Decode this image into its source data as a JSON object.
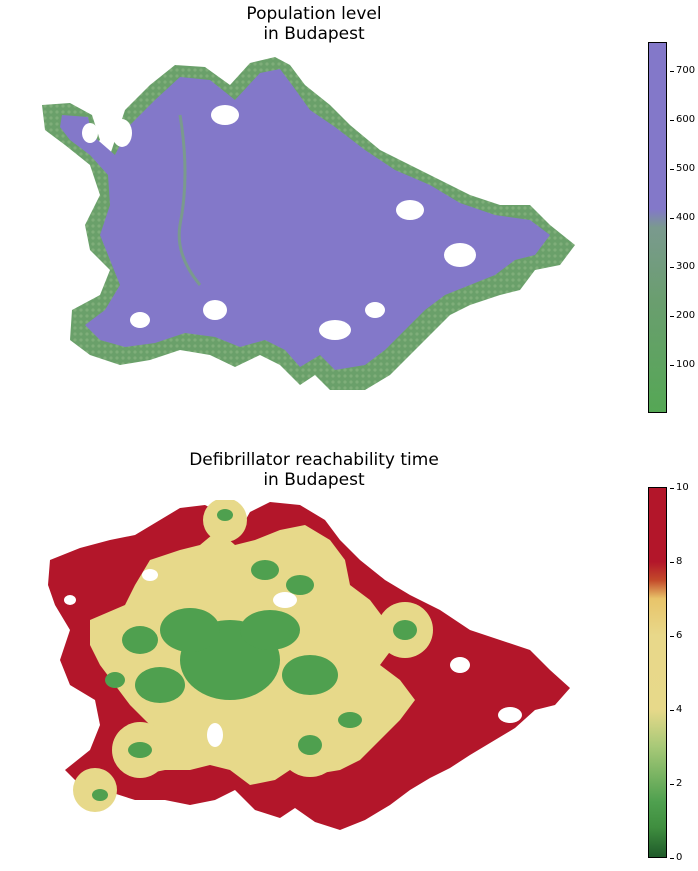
{
  "maps": [
    {
      "title_line1": "Population level",
      "title_line2": "in Budapest",
      "metric": "population",
      "colormap": {
        "low": "#55a755",
        "mid": "#7a9a8e",
        "high": "#8378c9"
      },
      "colorbar_ticks": [
        "100",
        "200",
        "300",
        "400",
        "500",
        "600",
        "700"
      ],
      "colorbar_range": [
        0,
        760
      ]
    },
    {
      "title_line1": "Defibrillator reachability time",
      "title_line2": "in Budapest",
      "metric": "reachability time",
      "colormap": {
        "stops": [
          "#1f5a2a",
          "#4fa04f",
          "#e7d98a",
          "#e8c46a",
          "#b3162a"
        ]
      },
      "colorbar_ticks": [
        "0",
        "2",
        "4",
        "6",
        "8",
        "10"
      ],
      "colorbar_range": [
        0,
        10
      ]
    }
  ]
}
